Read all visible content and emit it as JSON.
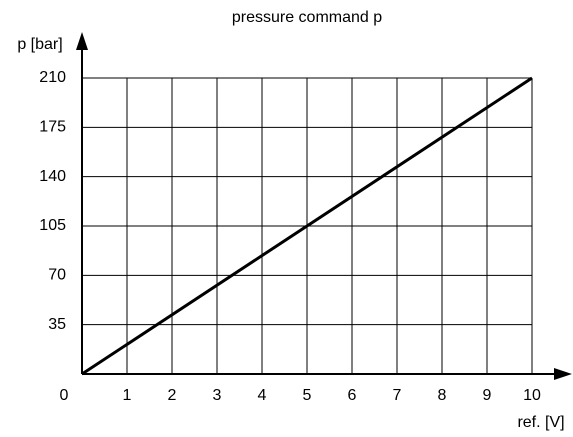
{
  "chart_data": {
    "type": "line",
    "title": "pressure command p",
    "x_label": "ref. [V]",
    "y_label": "p [bar]",
    "x": [
      0,
      10
    ],
    "series": [
      {
        "name": "p",
        "color": "#000000",
        "values": [
          0,
          210
        ]
      }
    ],
    "xlim": [
      0,
      10
    ],
    "xticks": [
      0,
      1,
      2,
      3,
      4,
      5,
      6,
      7,
      8,
      9,
      10
    ],
    "ylim": [
      0,
      210
    ],
    "yticks": [
      35,
      70,
      105,
      140,
      175,
      210
    ],
    "grid": true
  }
}
